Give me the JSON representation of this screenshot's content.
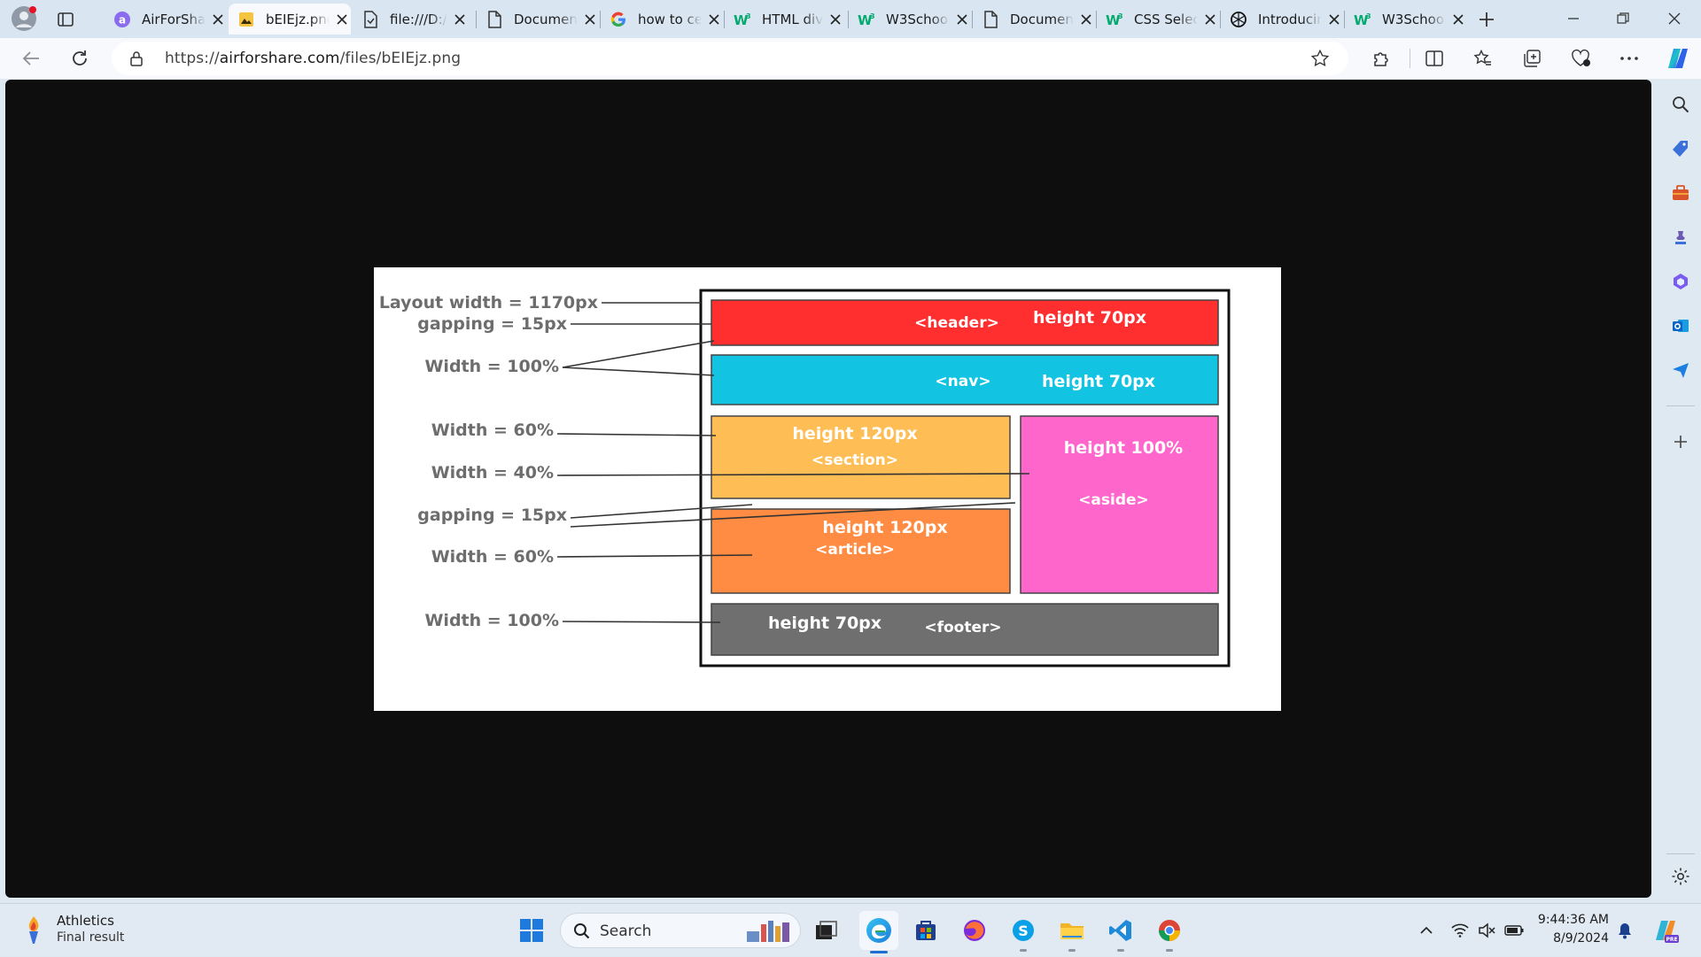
{
  "browser": {
    "tabs": [
      {
        "label": "AirForShare",
        "icon": "airforshare-icon",
        "active": false
      },
      {
        "label": "bEIEjz.png",
        "icon": "image-file-icon",
        "active": true
      },
      {
        "label": "file:///D:/",
        "icon": "file-icon",
        "active": false
      },
      {
        "label": "Document",
        "icon": "document-icon",
        "active": false
      },
      {
        "label": "how to center",
        "icon": "google-icon",
        "active": false
      },
      {
        "label": "HTML div",
        "icon": "w3schools-icon",
        "active": false
      },
      {
        "label": "W3Schools",
        "icon": "w3schools-icon",
        "active": false
      },
      {
        "label": "Document",
        "icon": "document-icon",
        "active": false
      },
      {
        "label": "CSS Selectors",
        "icon": "w3schools-icon",
        "active": false
      },
      {
        "label": "Introducing",
        "icon": "openai-icon",
        "active": false
      },
      {
        "label": "W3Schools",
        "icon": "w3schools-icon",
        "active": false
      }
    ],
    "url_prefix": "https://",
    "url_domain": "airforshare.com",
    "url_path": "/files/bEIEjz.png"
  },
  "diagram": {
    "left_labels": {
      "layout_width": "Layout width = 1170px",
      "gapping_top": "gapping = 15px",
      "width_100_top": "Width = 100%",
      "width_60_top": "Width = 60%",
      "width_40": "Width = 40%",
      "gapping_mid": "gapping = 15px",
      "width_60_bottom": "Width = 60%",
      "width_100_bottom": "Width = 100%"
    },
    "boxes": {
      "header_tag": "<header>",
      "header_height": "height 70px",
      "nav_tag": "<nav>",
      "nav_height": "height 70px",
      "section_height": "height 120px",
      "section_tag": "<section>",
      "aside_height": "height 100%",
      "aside_tag": "<aside>",
      "article_height": "height 120px",
      "article_tag": "<article>",
      "footer_height": "height 70px",
      "footer_tag": "<footer>"
    },
    "colors": {
      "header": "#ff2f2f",
      "nav": "#12c3e2",
      "section": "#ffbe55",
      "aside": "#ff66cc",
      "article": "#ff8c42",
      "footer": "#6f6f6f",
      "label_text": "#6d6d6d"
    }
  },
  "taskbar": {
    "weather_title": "Athletics",
    "weather_subtitle": "Final result",
    "search_placeholder": "Search",
    "time": "9:44:36 AM",
    "date": "8/9/2024"
  }
}
